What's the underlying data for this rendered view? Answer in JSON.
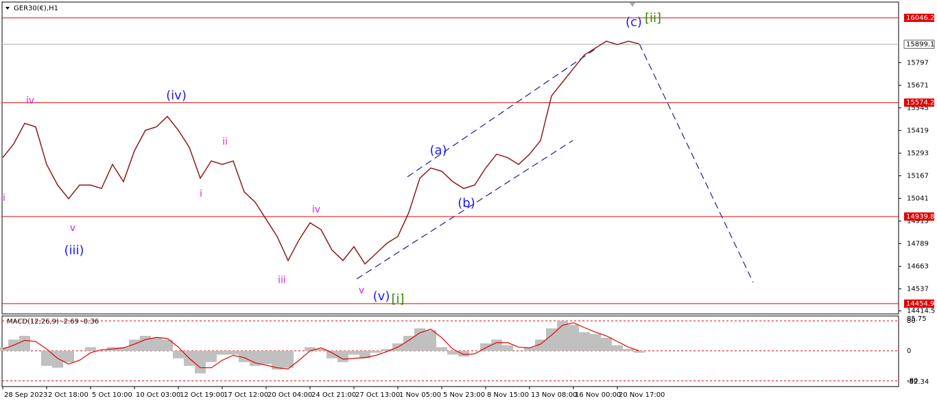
{
  "chart_data": {
    "type": "line",
    "title": "GER30(€),H1",
    "categories": [
      "28 Sep 2023",
      null,
      null,
      null,
      "2 Oct 18:00",
      null,
      null,
      null,
      "5 Oct 10:00",
      null,
      null,
      null,
      "10 Oct 03:00",
      null,
      null,
      null,
      "12 Oct 19:00",
      null,
      null,
      null,
      "17 Oct 12:00",
      null,
      null,
      null,
      "20 Oct 04:00",
      null,
      null,
      null,
      "24 Oct 21:00",
      null,
      null,
      null,
      "27 Oct 13:00",
      null,
      null,
      null,
      "1 Nov 05:00",
      null,
      null,
      null,
      "5 Nov 23:00",
      null,
      null,
      null,
      "8 Nov 15:00",
      null,
      null,
      null,
      "13 Nov 08:00",
      null,
      null,
      null,
      "16 Nov 00:00",
      null,
      null,
      null,
      "20 Nov 17:00",
      null,
      null
    ],
    "series": [
      {
        "color": "#8b1a1a",
        "values": [
          15268,
          15344,
          15459,
          15439,
          15230,
          15115,
          15039,
          15115,
          15115,
          15096,
          15230,
          15134,
          15306,
          15420,
          15439,
          15497,
          15420,
          15325,
          15153,
          15249,
          15230,
          15249,
          15077,
          15020,
          14924,
          14829,
          14695,
          14810,
          14905,
          14867,
          14753,
          14695,
          14772,
          14676,
          14733,
          14791,
          14829,
          14962,
          15153,
          15210,
          15192,
          15134,
          15096,
          15115,
          15210,
          15287,
          15268,
          15230,
          15287,
          15363,
          15611,
          15688,
          15764,
          15840,
          15878,
          15916,
          15897,
          15916,
          15901
        ]
      }
    ],
    "ylim": [
      14397.7,
      16145.4
    ],
    "yticks": [
      15797.0,
      15671.0,
      15545.0,
      15419.0,
      15293.0,
      15167.0,
      15041.0,
      14915.0,
      14789.0,
      14663.0,
      14537.0,
      14414.5
    ],
    "levels": [
      16046.2,
      15574.2,
      14939.8,
      14454.9
    ],
    "level_color": "#e00000",
    "current_price": 15899.1,
    "annotations": [
      {
        "text": "iv",
        "color": "#e020e0"
      },
      {
        "text": "(iv)",
        "color": "#1a1aff"
      },
      {
        "text": "ii",
        "color": "#e020e0"
      },
      {
        "text": "i",
        "color": "#e020e0"
      },
      {
        "text": "i",
        "color": "#e020e0"
      },
      {
        "text": "v",
        "color": "#e020e0"
      },
      {
        "text": "(iii)",
        "color": "#1a1aff"
      },
      {
        "text": "iv",
        "color": "#e020e0"
      },
      {
        "text": "iii",
        "color": "#e020e0"
      },
      {
        "text": "v",
        "color": "#e020e0"
      },
      {
        "text": "(v)",
        "color": "#1a1aff"
      },
      {
        "text": "[i]",
        "color": "#2e8b00"
      },
      {
        "text": "(a)",
        "color": "#1a1aff"
      },
      {
        "text": "(b)",
        "color": "#1a1aff"
      },
      {
        "text": "(c)",
        "color": "#1a1aff"
      },
      {
        "text": "[ii]",
        "color": "#2e8b00"
      }
    ],
    "macd": {
      "title": "MACD(12,26,9) -2.69 -0.36",
      "ylim": [
        -82.34,
        85.75
      ],
      "yticks": [
        80,
        0,
        -80
      ],
      "main": {
        "color": "#c0c0c0",
        "values": [
          10,
          30,
          40,
          0,
          -40,
          -45,
          -30,
          0,
          10,
          0,
          10,
          10,
          30,
          40,
          35,
          30,
          -20,
          -40,
          -60,
          -30,
          -10,
          -10,
          -30,
          -40,
          -35,
          -50,
          -45,
          0,
          10,
          5,
          -20,
          -30,
          -10,
          -20,
          -5,
          5,
          20,
          40,
          60,
          55,
          10,
          -10,
          -15,
          0,
          20,
          30,
          15,
          0,
          10,
          30,
          60,
          80,
          70,
          50,
          45,
          35,
          15,
          5,
          -5
        ]
      },
      "signal": {
        "color": "#e00000",
        "values": [
          5,
          15,
          28,
          25,
          5,
          -20,
          -35,
          -25,
          -5,
          3,
          5,
          8,
          18,
          30,
          36,
          33,
          10,
          -20,
          -45,
          -45,
          -25,
          -12,
          -18,
          -32,
          -38,
          -45,
          -48,
          -25,
          0,
          8,
          -5,
          -22,
          -20,
          -18,
          -12,
          -2,
          10,
          28,
          48,
          58,
          35,
          5,
          -10,
          -8,
          8,
          22,
          22,
          10,
          8,
          18,
          42,
          68,
          75,
          62,
          50,
          40,
          25,
          10,
          0
        ]
      }
    }
  }
}
